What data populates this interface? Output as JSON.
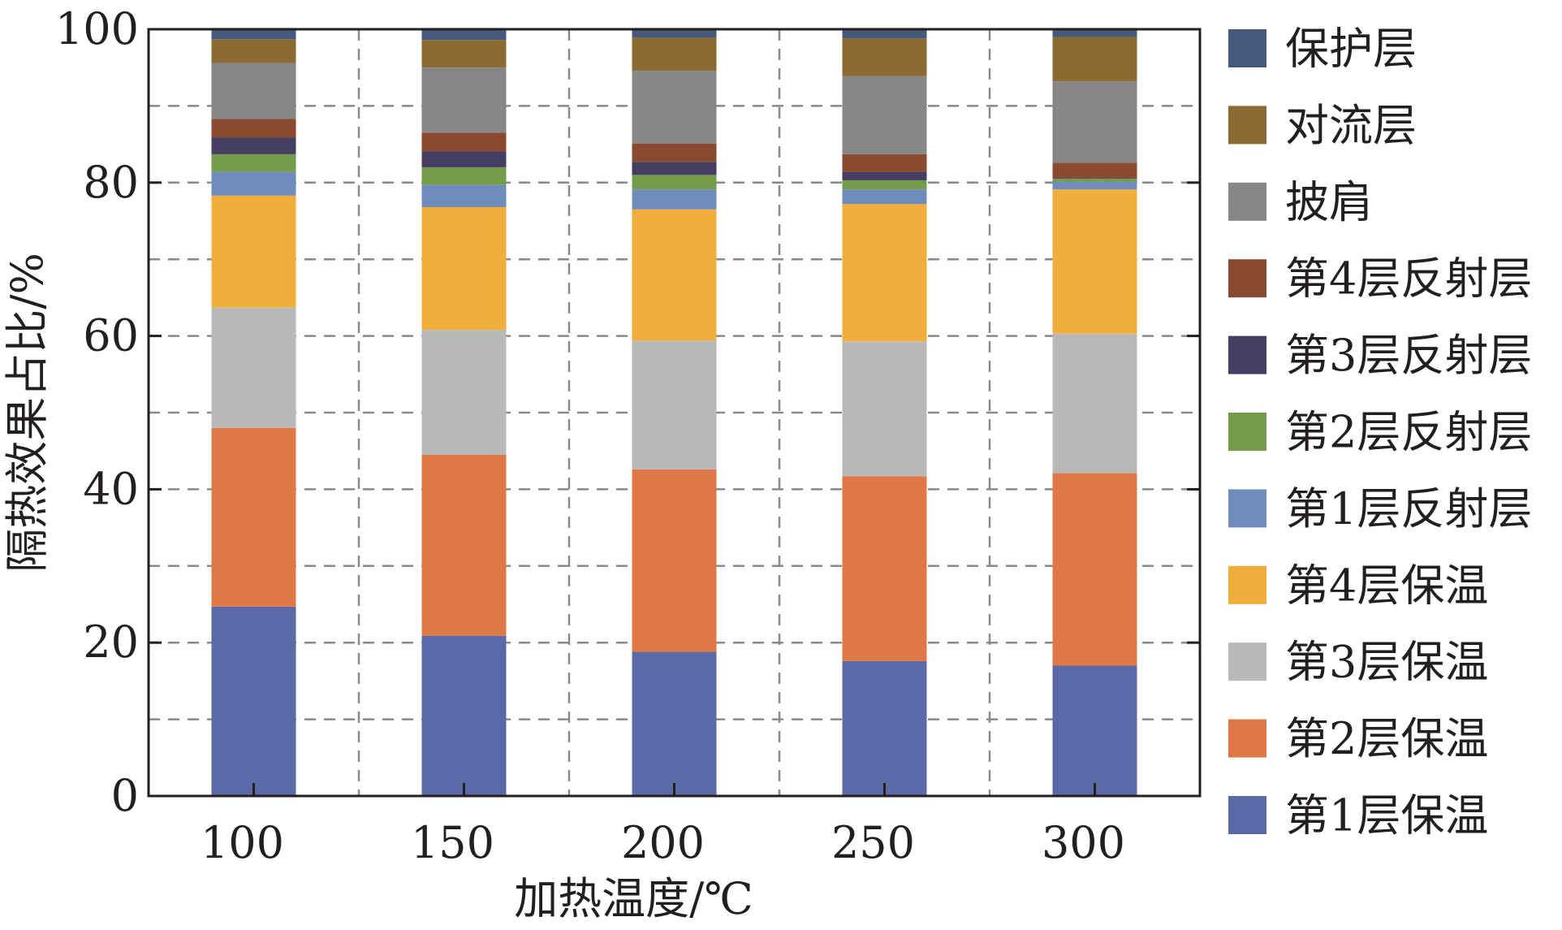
{
  "chart_data": {
    "type": "bar",
    "stacked": true,
    "xlabel": "加热温度/℃",
    "ylabel": "隔热效果占比/%",
    "categories": [
      "100",
      "150",
      "200",
      "250",
      "300"
    ],
    "ylim": [
      0,
      100
    ],
    "yticks": [
      "0",
      "20",
      "40",
      "60",
      "80",
      "100"
    ],
    "grid": true,
    "legend_position": "right",
    "series": [
      {
        "name": "第1层保温",
        "color": "#5b6aa6",
        "values": [
          24.7,
          20.9,
          18.8,
          17.6,
          17.0
        ]
      },
      {
        "name": "第2层保温",
        "color": "#e07846",
        "values": [
          23.3,
          23.6,
          23.8,
          24.1,
          25.1
        ]
      },
      {
        "name": "第3层保温",
        "color": "#b9b9b9",
        "values": [
          15.7,
          16.3,
          16.8,
          17.6,
          18.2
        ]
      },
      {
        "name": "第4层保温",
        "color": "#f2ae3d",
        "values": [
          14.6,
          16.0,
          17.1,
          17.9,
          18.8
        ]
      },
      {
        "name": "第1层反射层",
        "color": "#6f8dbb",
        "values": [
          3.1,
          2.9,
          2.6,
          1.9,
          1.0
        ]
      },
      {
        "name": "第2层反射层",
        "color": "#739c4b",
        "values": [
          2.3,
          2.3,
          1.9,
          1.2,
          0.4
        ]
      },
      {
        "name": "第3层反射层",
        "color": "#453e62",
        "values": [
          2.2,
          2.1,
          1.7,
          1.1,
          0.1
        ]
      },
      {
        "name": "第4层反射层",
        "color": "#8b4a2f",
        "values": [
          2.4,
          2.4,
          2.4,
          2.3,
          2.0
        ]
      },
      {
        "name": "披肩",
        "color": "#878787",
        "values": [
          7.3,
          8.5,
          9.5,
          10.2,
          10.6
        ]
      },
      {
        "name": "对流层",
        "color": "#8b6b31",
        "values": [
          3.1,
          3.6,
          4.3,
          4.9,
          5.8
        ]
      },
      {
        "name": "保护层",
        "color": "#46587c",
        "values": [
          1.3,
          1.4,
          1.1,
          1.2,
          1.0
        ]
      }
    ]
  }
}
